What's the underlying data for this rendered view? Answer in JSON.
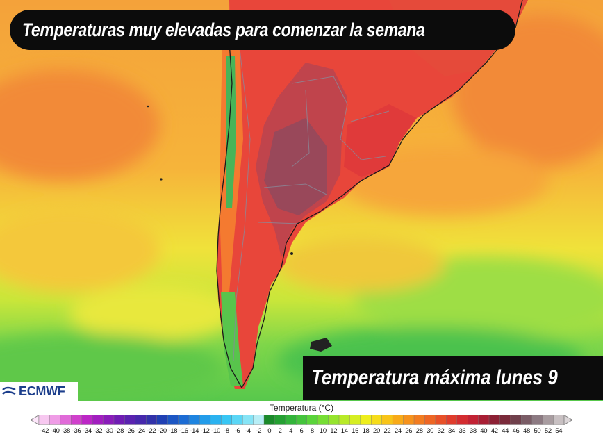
{
  "title": "Temperaturas muy elevadas para comenzar la semana",
  "subtitle": "Temperatura máxima lunes 9",
  "logo": {
    "text": "ECMWF",
    "icon": "ecmwf-logo"
  },
  "legend": {
    "title": "Temperatura (°C)",
    "ticks": [
      "-42",
      "-40",
      "-38",
      "-36",
      "-34",
      "-32",
      "-30",
      "-28",
      "-26",
      "-24",
      "-22",
      "-20",
      "-18",
      "-16",
      "-14",
      "-12",
      "-10",
      "-8",
      "-6",
      "-4",
      "-2",
      "0",
      "2",
      "4",
      "6",
      "8",
      "10",
      "12",
      "14",
      "16",
      "18",
      "20",
      "22",
      "24",
      "26",
      "28",
      "30",
      "32",
      "34",
      "36",
      "38",
      "40",
      "42",
      "44",
      "46",
      "48",
      "50",
      "52",
      "54"
    ],
    "colors": [
      "#f7c8f0",
      "#ef9ce6",
      "#e06ad8",
      "#d040cc",
      "#bc26c6",
      "#a21ec0",
      "#8a1cba",
      "#701cb4",
      "#5a22b0",
      "#4628ac",
      "#3232aa",
      "#2040b4",
      "#1c56c4",
      "#1c6cd4",
      "#1e84e0",
      "#229cea",
      "#2ab2f0",
      "#38c6f4",
      "#5ad6f6",
      "#86e4f6",
      "#b8eef6",
      "#1a8a2a",
      "#24a032",
      "#32b43a",
      "#44c43c",
      "#5ad43a",
      "#76de34",
      "#96e42e",
      "#b8ea28",
      "#d6ee22",
      "#eeee1c",
      "#f6dc1a",
      "#f8c418",
      "#f8aa18",
      "#f6921c",
      "#f27c20",
      "#ee6624",
      "#e85028",
      "#e03c2c",
      "#d42c30",
      "#c22234",
      "#a81e34",
      "#8c2034",
      "#7a2a3a",
      "#70404c",
      "#7a5c66",
      "#8c7a82",
      "#a89ca0",
      "#c8c0c2"
    ]
  }
}
